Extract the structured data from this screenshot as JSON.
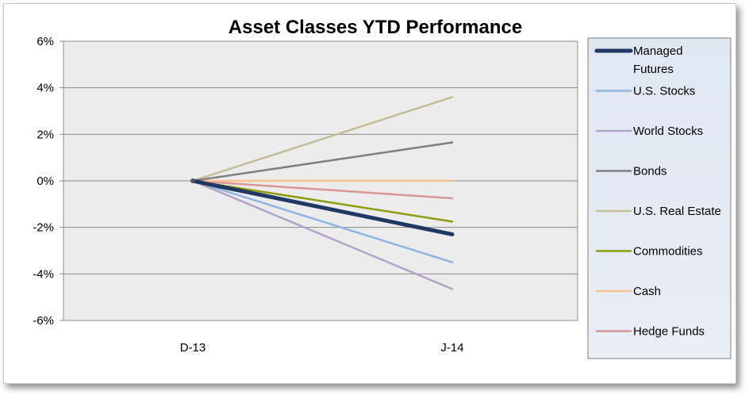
{
  "chart_data": {
    "type": "line",
    "title": "Asset Classes YTD Performance",
    "xlabel": "",
    "ylabel": "",
    "categories": [
      "D-13",
      "J-14"
    ],
    "ylim": [
      -6,
      6
    ],
    "yticks": [
      -6,
      -4,
      -2,
      0,
      2,
      4,
      6
    ],
    "ytick_labels": [
      "-6%",
      "-4%",
      "-2%",
      "0%",
      "2%",
      "4%",
      "6%"
    ],
    "grid": true,
    "legend_position": "right",
    "series": [
      {
        "name": "Managed Futures",
        "values": [
          0,
          -2.3
        ],
        "color": "#1f3864",
        "width": 5
      },
      {
        "name": "U.S. Stocks",
        "values": [
          0,
          -3.5
        ],
        "color": "#8db4e2",
        "width": 2.5
      },
      {
        "name": "World Stocks",
        "values": [
          0,
          -4.65
        ],
        "color": "#b3a2c7",
        "width": 2.5
      },
      {
        "name": "Bonds",
        "values": [
          0,
          1.65
        ],
        "color": "#7f7f7f",
        "width": 2.5
      },
      {
        "name": "U.S. Real Estate",
        "values": [
          0,
          3.6
        ],
        "color": "#c4bd97",
        "width": 2.5
      },
      {
        "name": "Commodities",
        "values": [
          0,
          -1.75
        ],
        "color": "#8c9c0c",
        "width": 2.5
      },
      {
        "name": "Cash",
        "values": [
          0,
          0
        ],
        "color": "#fac090",
        "width": 2.5
      },
      {
        "name": "Hedge Funds",
        "values": [
          0,
          -0.75
        ],
        "color": "#d99694",
        "width": 2.5
      }
    ]
  }
}
